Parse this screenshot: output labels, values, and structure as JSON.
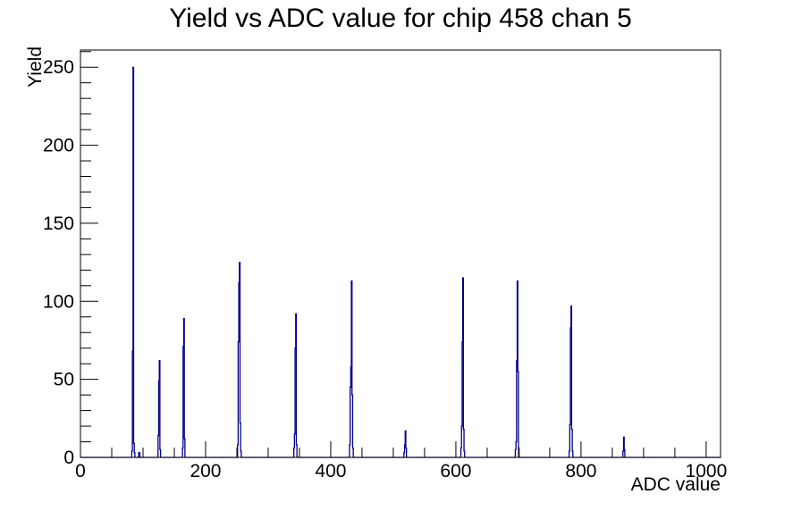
{
  "chart_data": {
    "type": "bar",
    "title": "Yield vs ADC value for chip 458 chan 5",
    "xlabel": "ADC value",
    "ylabel": "Yield",
    "xlim": [
      0,
      1023
    ],
    "ylim": [
      0,
      261
    ],
    "x_major_ticks": [
      0,
      200,
      400,
      600,
      800,
      1000
    ],
    "x_minor_step": 50,
    "y_major_ticks": [
      0,
      50,
      100,
      150,
      200,
      250
    ],
    "y_minor_step": 10,
    "grid": false,
    "legend": "none",
    "bin_width": 1,
    "line_color": "#00008b",
    "axis_color": "#000000",
    "background_color": "#ffffff",
    "bins": [
      [
        82,
        4
      ],
      [
        83,
        68
      ],
      [
        84,
        250
      ],
      [
        85,
        9
      ],
      [
        86,
        3
      ],
      [
        93,
        3
      ],
      [
        94,
        3
      ],
      [
        124,
        14
      ],
      [
        125,
        49
      ],
      [
        126,
        62
      ],
      [
        127,
        5
      ],
      [
        163,
        6
      ],
      [
        164,
        71
      ],
      [
        165,
        89
      ],
      [
        166,
        12
      ],
      [
        251,
        8
      ],
      [
        252,
        74
      ],
      [
        253,
        112
      ],
      [
        254,
        125
      ],
      [
        255,
        22
      ],
      [
        256,
        4
      ],
      [
        341,
        6
      ],
      [
        342,
        15
      ],
      [
        343,
        70
      ],
      [
        344,
        92
      ],
      [
        345,
        8
      ],
      [
        430,
        8
      ],
      [
        431,
        45
      ],
      [
        432,
        58
      ],
      [
        433,
        113
      ],
      [
        434,
        40
      ],
      [
        435,
        6
      ],
      [
        517,
        3
      ],
      [
        518,
        8
      ],
      [
        519,
        17
      ],
      [
        520,
        6
      ],
      [
        608,
        6
      ],
      [
        609,
        20
      ],
      [
        610,
        74
      ],
      [
        611,
        115
      ],
      [
        612,
        18
      ],
      [
        613,
        4
      ],
      [
        695,
        5
      ],
      [
        696,
        10
      ],
      [
        697,
        62
      ],
      [
        698,
        113
      ],
      [
        699,
        55
      ],
      [
        700,
        6
      ],
      [
        781,
        4
      ],
      [
        782,
        21
      ],
      [
        783,
        83
      ],
      [
        784,
        97
      ],
      [
        785,
        18
      ],
      [
        786,
        4
      ],
      [
        867,
        4
      ],
      [
        868,
        13
      ],
      [
        869,
        5
      ]
    ],
    "peak_summary": [
      {
        "adc": 84,
        "yield": 250
      },
      {
        "adc": 126,
        "yield": 62
      },
      {
        "adc": 165,
        "yield": 89
      },
      {
        "adc": 254,
        "yield": 125
      },
      {
        "adc": 344,
        "yield": 92
      },
      {
        "adc": 433,
        "yield": 113
      },
      {
        "adc": 519,
        "yield": 17
      },
      {
        "adc": 611,
        "yield": 115
      },
      {
        "adc": 698,
        "yield": 113
      },
      {
        "adc": 784,
        "yield": 97
      },
      {
        "adc": 868,
        "yield": 13
      }
    ]
  }
}
